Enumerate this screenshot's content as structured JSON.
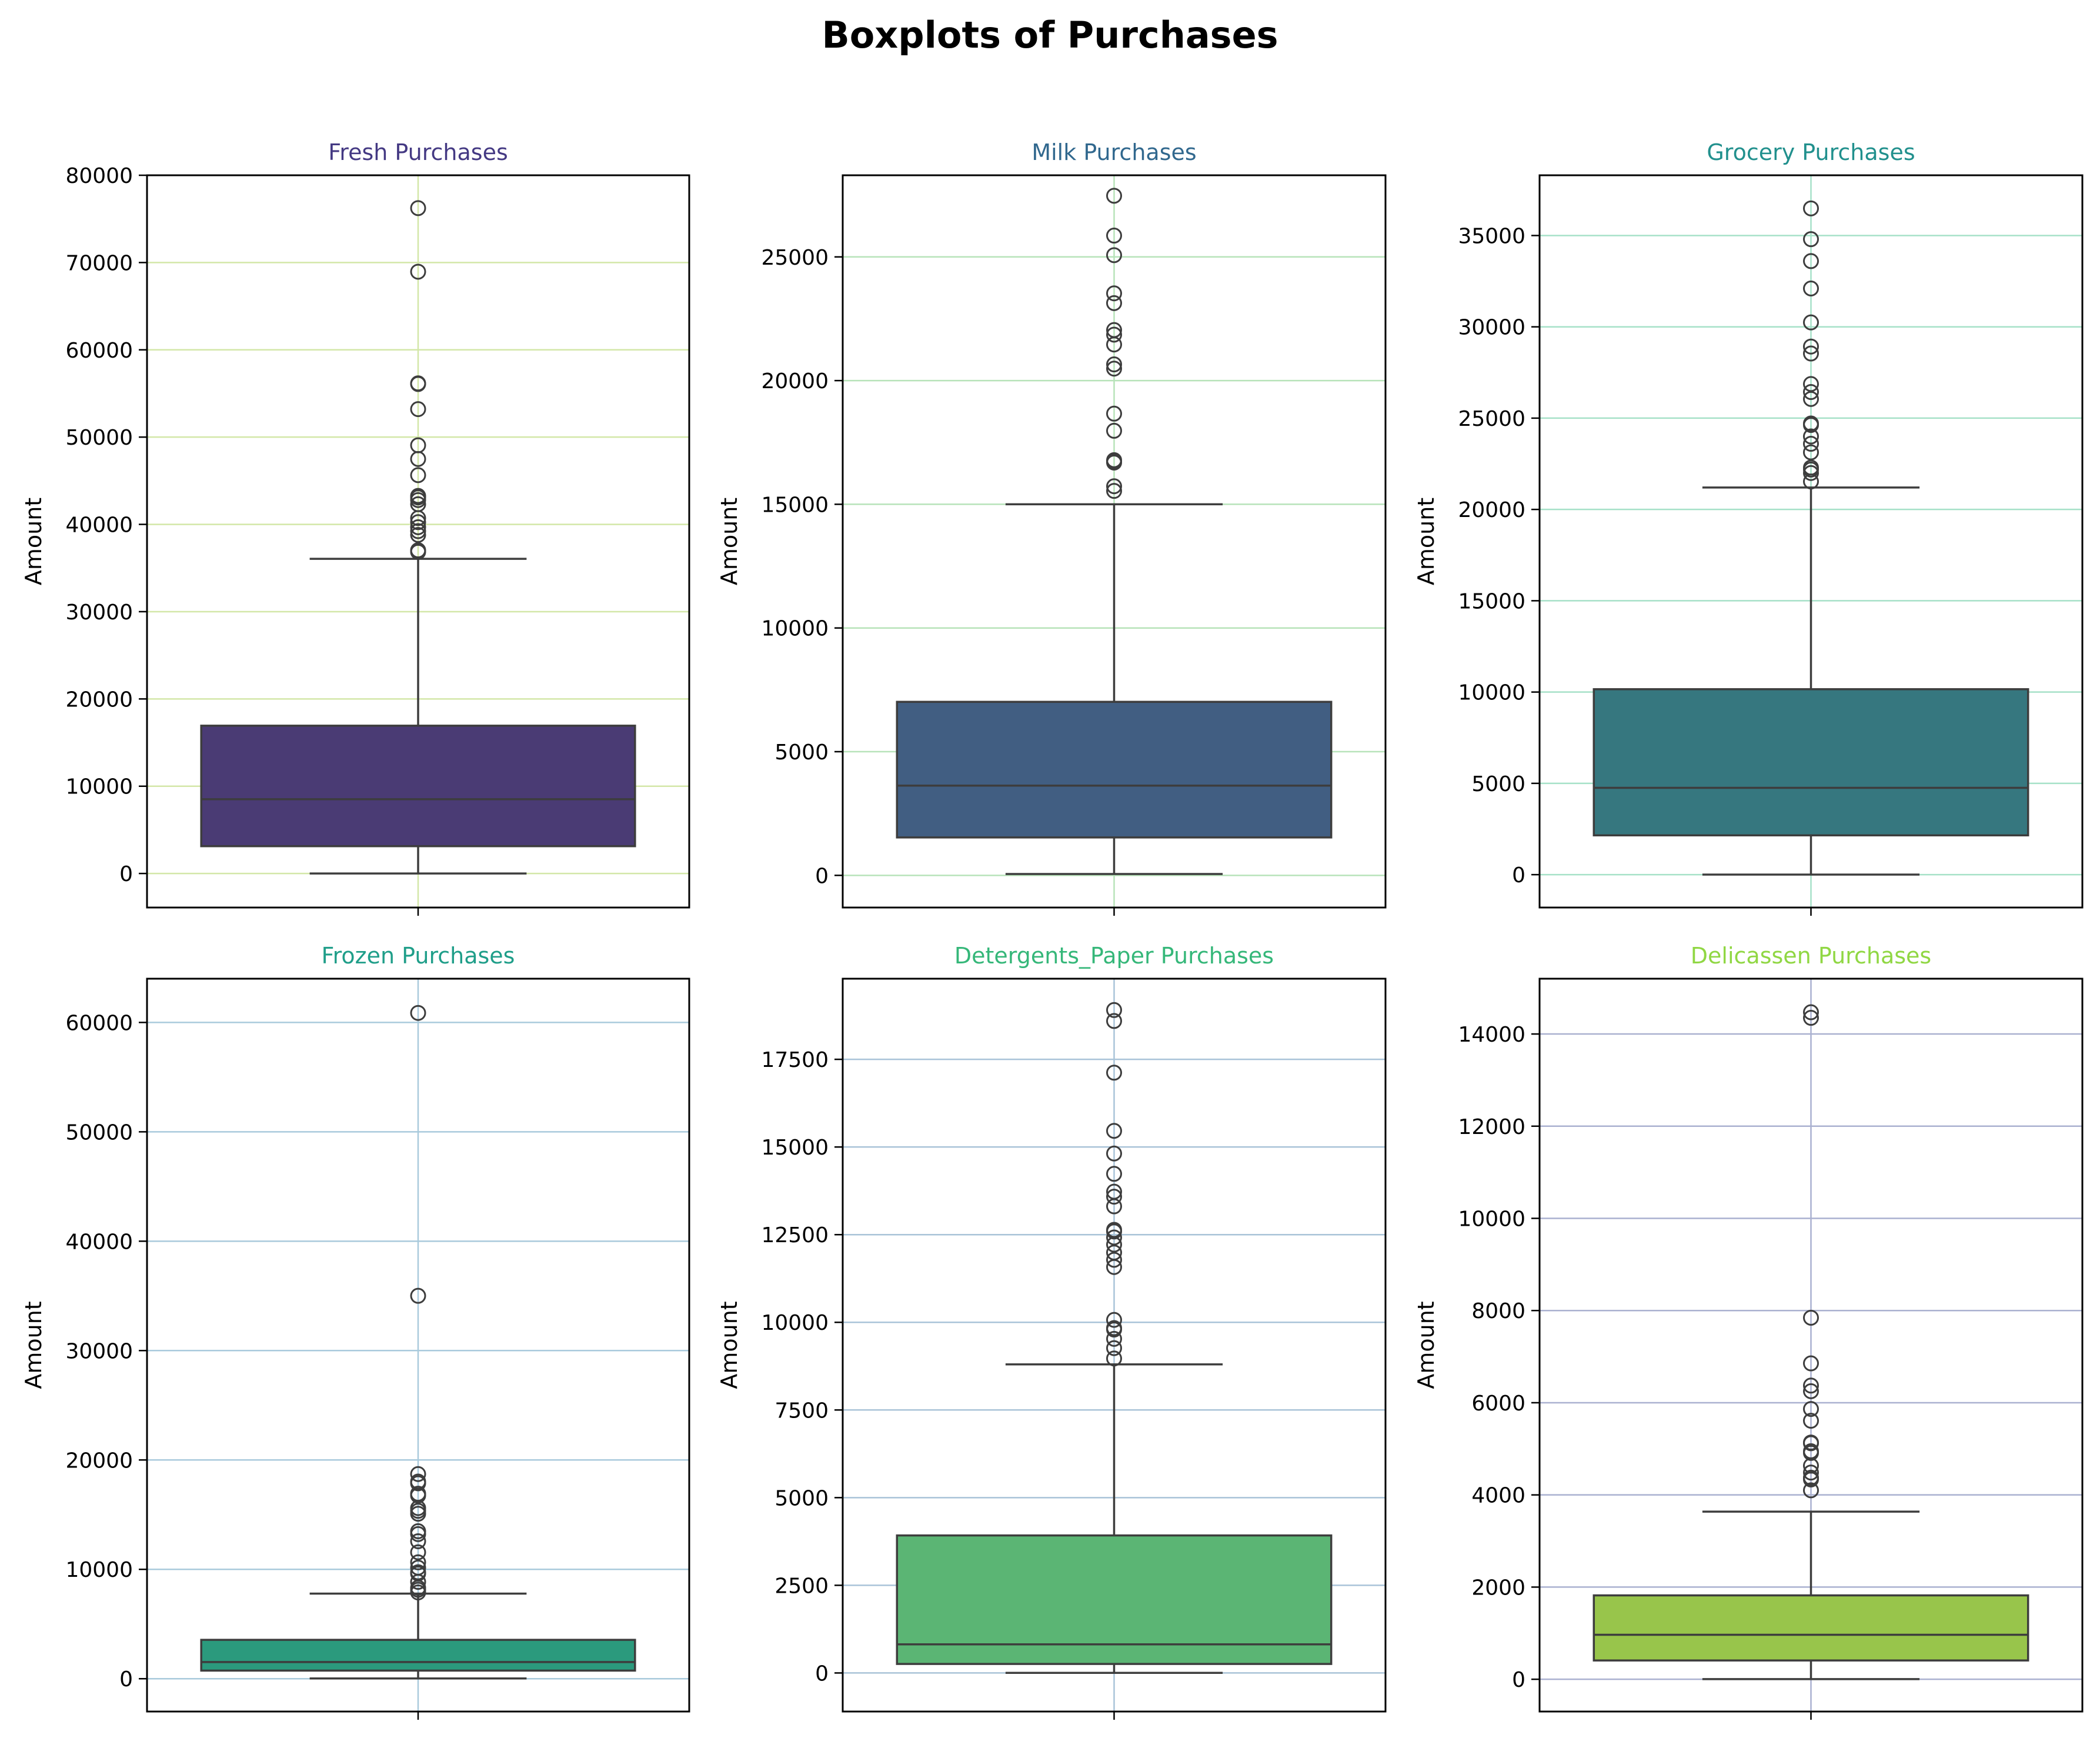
{
  "title": "Boxplots of Purchases",
  "chart_data": [
    {
      "type": "box",
      "title": "Fresh Purchases",
      "title_color": "#443983",
      "box_color": "#4a3b74",
      "grid_color": "#d3e7a8",
      "ylabel": "Amount",
      "ylim": [
        -3900,
        80000
      ],
      "yticks": [
        0,
        10000,
        20000,
        30000,
        40000,
        50000,
        60000,
        70000,
        80000
      ],
      "stats": {
        "whisker_low": 3,
        "q1": 3128,
        "median": 8504,
        "q3": 16934,
        "whisker_high": 36050
      },
      "outliers": [
        76237,
        68951,
        56159,
        56082,
        53205,
        49063,
        47493,
        45640,
        43265,
        43088,
        42786,
        42312,
        40721,
        40254,
        39679,
        39228,
        38793,
        37036,
        36847
      ]
    },
    {
      "type": "box",
      "title": "Milk Purchases",
      "title_color": "#31688e",
      "box_color": "#415e82",
      "grid_color": "#b7e3b9",
      "ylabel": "Amount",
      "ylim": [
        -1300,
        28300
      ],
      "yticks": [
        0,
        5000,
        10000,
        15000,
        20000,
        25000
      ],
      "stats": {
        "whisker_low": 55,
        "q1": 1533,
        "median": 3627,
        "q3": 7014,
        "whisker_high": 15000
      },
      "outliers": [
        27472,
        25862,
        25071,
        23527,
        23133,
        22044,
        21858,
        21459,
        20655,
        20484,
        18664,
        17972,
        16784,
        16729,
        16687,
        15729,
        15541
      ]
    },
    {
      "type": "box",
      "title": "Grocery Purchases",
      "title_color": "#21908d",
      "box_color": "#36777f",
      "grid_color": "#a6e1c8",
      "ylabel": "Amount",
      "ylim": [
        -1800,
        38300
      ],
      "yticks": [
        0,
        5000,
        10000,
        15000,
        20000,
        25000,
        30000,
        35000
      ],
      "stats": {
        "whisker_low": 3,
        "q1": 2153,
        "median": 4756,
        "q3": 10156,
        "whisker_high": 21200
      },
      "outliers": [
        36486,
        34800,
        33600,
        32100,
        30243,
        28921,
        28540,
        26870,
        26430,
        26050,
        24708,
        24625,
        23998,
        23596,
        23127,
        22294,
        22182,
        21994,
        21531
      ]
    },
    {
      "type": "box",
      "title": "Frozen Purchases",
      "title_color": "#1f9e89",
      "box_color": "#2b9a7d",
      "grid_color": "#a9cadc",
      "ylabel": "Amount",
      "ylim": [
        -3000,
        64000
      ],
      "yticks": [
        0,
        10000,
        20000,
        30000,
        40000,
        50000,
        60000
      ],
      "stats": {
        "whisker_low": 25,
        "q1": 742,
        "median": 1526,
        "q3": 3554,
        "whisker_high": 7782
      },
      "outliers": [
        60869,
        35009,
        18711,
        18028,
        17866,
        16919,
        16745,
        15601,
        15348,
        15082,
        13486,
        13223,
        12569,
        11559,
        10643,
        10155,
        9736,
        9612,
        8853,
        8321,
        8132,
        7888
      ]
    },
    {
      "type": "box",
      "title": "Detergents_Paper Purchases",
      "title_color": "#35b779",
      "box_color": "#5bb574",
      "grid_color": "#a9c3d8",
      "ylabel": "Amount",
      "ylim": [
        -1100,
        19800
      ],
      "yticks": [
        0,
        2500,
        5000,
        7500,
        10000,
        12500,
        15000,
        17500
      ],
      "stats": {
        "whisker_low": 3,
        "q1": 257,
        "median": 816,
        "q3": 3922,
        "whisker_high": 8800
      },
      "outliers": [
        18906,
        18594,
        17120,
        15460,
        14814,
        14235,
        13726,
        13583,
        13308,
        12638,
        12591,
        12420,
        12218,
        11990,
        11783,
        11577,
        10069,
        9836,
        9794,
        9529,
        9265,
        8969
      ]
    },
    {
      "type": "box",
      "title": "Delicassen Purchases",
      "title_color": "#90d743",
      "box_color": "#98c54b",
      "grid_color": "#aab1d0",
      "ylabel": "Amount",
      "ylim": [
        -700,
        15200
      ],
      "yticks": [
        0,
        2000,
        4000,
        6000,
        8000,
        10000,
        12000,
        14000
      ],
      "stats": {
        "whisker_low": 3,
        "q1": 408,
        "median": 966,
        "q3": 1820,
        "whisker_high": 3637
      },
      "outliers": [
        14472,
        14351,
        7844,
        6854,
        6372,
        6250,
        5864,
        5609,
        5137,
        5121,
        4948,
        4910,
        4634,
        4485,
        4374,
        4366,
        4334,
        4100
      ]
    }
  ]
}
